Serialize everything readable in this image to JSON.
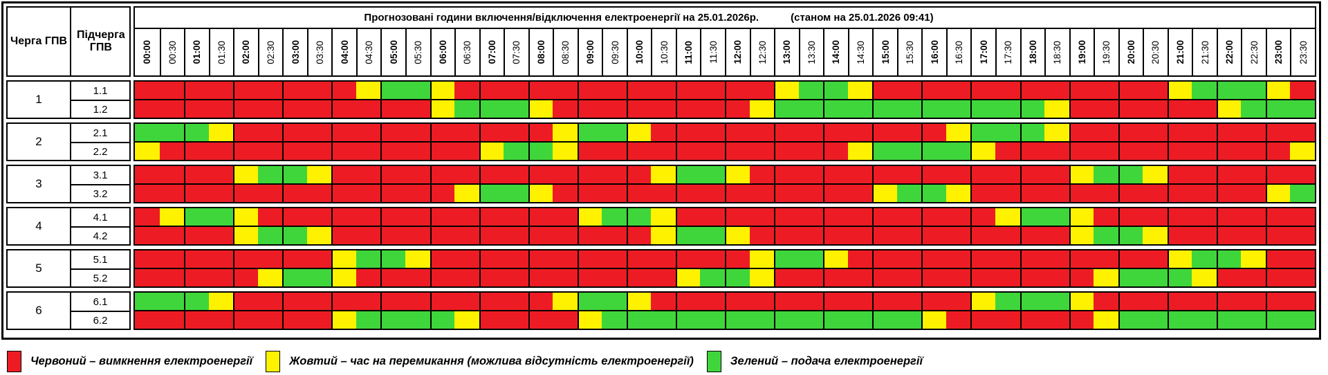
{
  "title": {
    "main": "Прогнозовані години включення/відключення електроенергії на 25.01.2026р.",
    "as_of": "(станом на 25.01.2026 09:41)"
  },
  "column_headers": {
    "queue": "Черга ГПВ",
    "subqueue": "Підчерга ГПВ"
  },
  "times": [
    "00:00",
    "00:30",
    "01:00",
    "01:30",
    "02:00",
    "02:30",
    "03:00",
    "03:30",
    "04:00",
    "04:30",
    "05:00",
    "05:30",
    "06:00",
    "06:30",
    "07:00",
    "07:30",
    "08:00",
    "08:30",
    "09:00",
    "09:30",
    "10:00",
    "10:30",
    "11:00",
    "11:30",
    "12:00",
    "12:30",
    "13:00",
    "13:30",
    "14:00",
    "14:30",
    "15:00",
    "15:30",
    "16:00",
    "16:30",
    "17:00",
    "17:30",
    "18:00",
    "18:30",
    "19:00",
    "19:30",
    "20:00",
    "20:30",
    "21:00",
    "21:30",
    "22:00",
    "22:30",
    "23:00",
    "23:30"
  ],
  "colors": {
    "R": "#ED1C24",
    "Y": "#FFF200",
    "G": "#3FD63C"
  },
  "status_meaning": {
    "R": "вимкнення",
    "Y": "перемикання",
    "G": "подача"
  },
  "groups": [
    {
      "queue": "1",
      "rows": [
        {
          "label": "1.1",
          "slots": "RRRRRRRRRYGGYRRRRRRRRRRRRRYGGYRRRRRRRRRRRRYGGGYR"
        },
        {
          "label": "1.2",
          "slots": "RRRRRRRRRRRRYGGGYRRRRRRRRYGGGGGGGGGGGYRRRRRRYGGG"
        }
      ]
    },
    {
      "queue": "2",
      "rows": [
        {
          "label": "2.1",
          "slots": "GGGYRRRRRRRRRRRRRYGGYRRRRRRRRRRRRYGGGYRRRRRRRRRR"
        },
        {
          "label": "2.2",
          "slots": "YRRRRRRRRRRRRRYGGYRRRRRRRRRRRYGGGGYRRRRRRRRRRRRY"
        }
      ]
    },
    {
      "queue": "3",
      "rows": [
        {
          "label": "3.1",
          "slots": "RRRRYGGYRRRRRRRRRRRRRYGGYRRRRRRRRRRRRRYGGYRRRRRR"
        },
        {
          "label": "3.2",
          "slots": "RRRRRRRRRRRRRYGGYRRRRRRRRRRRRRYGGYRRRRRRRRRRRRYG"
        }
      ]
    },
    {
      "queue": "4",
      "rows": [
        {
          "label": "4.1",
          "slots": "RYGGYRRRRRRRRRRRRRYGGYRRRRRRRRRRRRRYGGYRRRRRRRRR"
        },
        {
          "label": "4.2",
          "slots": "RRRRYGGYRRRRRRRRRRRRRYGGYRRRRRRRRRRRRRYGGYRRRRRR"
        }
      ]
    },
    {
      "queue": "5",
      "rows": [
        {
          "label": "5.1",
          "slots": "RRRRRRRRYGGYRRRRRRRRRRRRRYGGYRRRRRRRRRRRRRYGGYRR"
        },
        {
          "label": "5.2",
          "slots": "RRRRRYGGYRRRRRRRRRRRRRYGGYRRRRRRRRRRRRRYGGGYRRRR"
        }
      ]
    },
    {
      "queue": "6",
      "rows": [
        {
          "label": "6.1",
          "slots": "GGGYRRRRRRRRRRRRRYGGYRRRRRRRRRRRRRYGGGYRRRRRRRRR"
        },
        {
          "label": "6.2",
          "slots": "RRRRRRRRYGGGGYRRRRYGGGGGGGGGGGGGYRRRRRRYGGGGGGGG"
        }
      ]
    }
  ],
  "legend": [
    {
      "key": "R",
      "label": "Червоний – вимкнення електроенергії"
    },
    {
      "key": "Y",
      "label": "Жовтий – час на перемикання (можлива відсутність електроенергії)"
    },
    {
      "key": "G",
      "label": "Зелений – подача електроенергії"
    }
  ]
}
